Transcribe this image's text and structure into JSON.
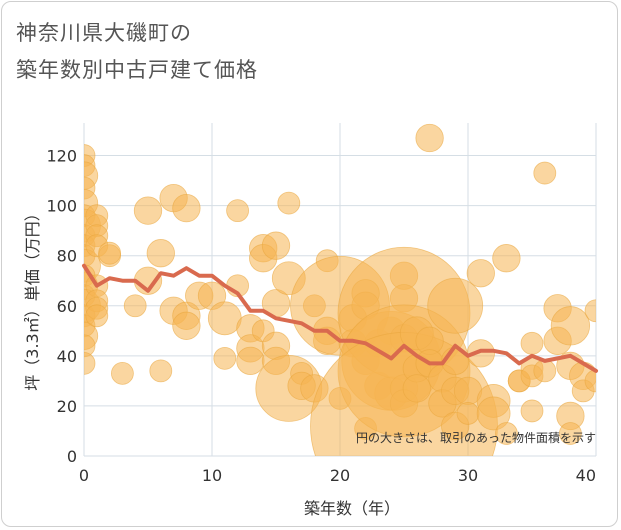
{
  "title_line1": "神奈川県大磯町の",
  "title_line2": "築年数別中古戸建て価格",
  "chart_data": {
    "type": "scatter",
    "title": "神奈川県大磯町の築年数別中古戸建て価格",
    "xlabel": "築年数（年）",
    "ylabel": "坪（3.3㎡）単価（万円）",
    "xlim": [
      0,
      40
    ],
    "ylim": [
      0,
      133
    ],
    "xticks": [
      0,
      10,
      20,
      30,
      40
    ],
    "yticks": [
      0,
      20,
      40,
      60,
      80,
      100,
      120
    ],
    "grid": true,
    "note": "円の大きさは、取引のあった物件面積を示す",
    "colors": {
      "bubble": "#f5b552",
      "bubble_stroke": "#eaa63e",
      "line": "#d96a4e",
      "grid": "#d5dee5"
    },
    "scatter": [
      {
        "x": 0,
        "y": 120,
        "s": 2
      },
      {
        "x": 0,
        "y": 116,
        "s": 2
      },
      {
        "x": 0,
        "y": 112,
        "s": 2.5
      },
      {
        "x": 0,
        "y": 107,
        "s": 2
      },
      {
        "x": 0,
        "y": 101,
        "s": 2.5
      },
      {
        "x": 0,
        "y": 96,
        "s": 2
      },
      {
        "x": 0,
        "y": 92,
        "s": 3
      },
      {
        "x": 0,
        "y": 88,
        "s": 2
      },
      {
        "x": 0,
        "y": 84,
        "s": 2
      },
      {
        "x": 0,
        "y": 80,
        "s": 2
      },
      {
        "x": 0,
        "y": 76,
        "s": 3
      },
      {
        "x": 0,
        "y": 72,
        "s": 2
      },
      {
        "x": 0,
        "y": 68,
        "s": 2.5
      },
      {
        "x": 0,
        "y": 64,
        "s": 2
      },
      {
        "x": 0,
        "y": 60,
        "s": 3
      },
      {
        "x": 0,
        "y": 56,
        "s": 2
      },
      {
        "x": 0,
        "y": 52,
        "s": 2
      },
      {
        "x": 0,
        "y": 48,
        "s": 2.5
      },
      {
        "x": 0,
        "y": 44,
        "s": 2
      },
      {
        "x": 0,
        "y": 37,
        "s": 2
      },
      {
        "x": 1,
        "y": 96,
        "s": 2
      },
      {
        "x": 1,
        "y": 92,
        "s": 2
      },
      {
        "x": 1,
        "y": 88,
        "s": 2
      },
      {
        "x": 1,
        "y": 84,
        "s": 2
      },
      {
        "x": 1,
        "y": 68,
        "s": 2
      },
      {
        "x": 1,
        "y": 62,
        "s": 2
      },
      {
        "x": 1,
        "y": 59,
        "s": 2
      },
      {
        "x": 1,
        "y": 56,
        "s": 2
      },
      {
        "x": 2,
        "y": 80,
        "s": 2
      },
      {
        "x": 2,
        "y": 81,
        "s": 2
      },
      {
        "x": 3,
        "y": 33,
        "s": 2
      },
      {
        "x": 4,
        "y": 60,
        "s": 2
      },
      {
        "x": 5,
        "y": 98,
        "s": 2.5
      },
      {
        "x": 5,
        "y": 70,
        "s": 2.5
      },
      {
        "x": 6,
        "y": 81,
        "s": 2.5
      },
      {
        "x": 6,
        "y": 34,
        "s": 2
      },
      {
        "x": 7,
        "y": 103,
        "s": 2.5
      },
      {
        "x": 7,
        "y": 58,
        "s": 2.5
      },
      {
        "x": 8,
        "y": 99,
        "s": 2.5
      },
      {
        "x": 8,
        "y": 56,
        "s": 2.5
      },
      {
        "x": 8,
        "y": 52,
        "s": 2.5
      },
      {
        "x": 9,
        "y": 64,
        "s": 2.5
      },
      {
        "x": 10,
        "y": 64,
        "s": 2.5
      },
      {
        "x": 11,
        "y": 55,
        "s": 3
      },
      {
        "x": 11,
        "y": 39,
        "s": 2
      },
      {
        "x": 12,
        "y": 98,
        "s": 2
      },
      {
        "x": 12,
        "y": 68,
        "s": 2
      },
      {
        "x": 13,
        "y": 51,
        "s": 2.5
      },
      {
        "x": 13,
        "y": 43,
        "s": 2.5
      },
      {
        "x": 13,
        "y": 38,
        "s": 2.5
      },
      {
        "x": 14,
        "y": 83,
        "s": 2.5
      },
      {
        "x": 14,
        "y": 79,
        "s": 2.5
      },
      {
        "x": 14,
        "y": 50,
        "s": 2
      },
      {
        "x": 15,
        "y": 84,
        "s": 2.5
      },
      {
        "x": 15,
        "y": 61,
        "s": 2.5
      },
      {
        "x": 15,
        "y": 44,
        "s": 2.5
      },
      {
        "x": 15,
        "y": 38,
        "s": 2.5
      },
      {
        "x": 16,
        "y": 101,
        "s": 2
      },
      {
        "x": 16,
        "y": 71,
        "s": 3
      },
      {
        "x": 16,
        "y": 27,
        "s": 6
      },
      {
        "x": 17,
        "y": 33,
        "s": 2
      },
      {
        "x": 17,
        "y": 28,
        "s": 2.5
      },
      {
        "x": 18,
        "y": 60,
        "s": 2
      },
      {
        "x": 18,
        "y": 27,
        "s": 2.5
      },
      {
        "x": 19,
        "y": 78,
        "s": 2
      },
      {
        "x": 19,
        "y": 50,
        "s": 2.5
      },
      {
        "x": 19,
        "y": 46,
        "s": 2.5
      },
      {
        "x": 20,
        "y": 60,
        "s": 9
      },
      {
        "x": 20,
        "y": 23,
        "s": 2
      },
      {
        "x": 21,
        "y": 55,
        "s": 2.5
      },
      {
        "x": 21,
        "y": 45,
        "s": 2.5
      },
      {
        "x": 22,
        "y": 65,
        "s": 2.5
      },
      {
        "x": 22,
        "y": 60,
        "s": 2.5
      },
      {
        "x": 22,
        "y": 38,
        "s": 2.5
      },
      {
        "x": 22,
        "y": 11,
        "s": 2
      },
      {
        "x": 23,
        "y": 45,
        "s": 2.5
      },
      {
        "x": 23,
        "y": 28,
        "s": 2.5
      },
      {
        "x": 24,
        "y": 50,
        "s": 2.5
      },
      {
        "x": 24,
        "y": 38,
        "s": 9
      },
      {
        "x": 24,
        "y": 25,
        "s": 3
      },
      {
        "x": 25,
        "y": 72,
        "s": 2.5
      },
      {
        "x": 25,
        "y": 63,
        "s": 2.5
      },
      {
        "x": 25,
        "y": 57,
        "s": 12
      },
      {
        "x": 25,
        "y": 47,
        "s": 2.5
      },
      {
        "x": 25,
        "y": 34,
        "s": 12
      },
      {
        "x": 25,
        "y": 27,
        "s": 2.5
      },
      {
        "x": 25,
        "y": 21,
        "s": 2.5
      },
      {
        "x": 25,
        "y": 12,
        "s": 17
      },
      {
        "x": 26,
        "y": 49,
        "s": 3
      },
      {
        "x": 26,
        "y": 35,
        "s": 2.5
      },
      {
        "x": 26,
        "y": 27,
        "s": 2.5
      },
      {
        "x": 27,
        "y": 127,
        "s": 2.5
      },
      {
        "x": 27,
        "y": 46,
        "s": 2.5
      },
      {
        "x": 27,
        "y": 37,
        "s": 2.5
      },
      {
        "x": 28,
        "y": 31,
        "s": 2.5
      },
      {
        "x": 28,
        "y": 21,
        "s": 2.5
      },
      {
        "x": 29,
        "y": 60,
        "s": 5
      },
      {
        "x": 29,
        "y": 38,
        "s": 2.5
      },
      {
        "x": 29,
        "y": 26,
        "s": 2.5
      },
      {
        "x": 29,
        "y": 12,
        "s": 2.5
      },
      {
        "x": 30,
        "y": 26,
        "s": 2.5
      },
      {
        "x": 30,
        "y": 17,
        "s": 2
      },
      {
        "x": 31,
        "y": 73,
        "s": 2.5
      },
      {
        "x": 31,
        "y": 41,
        "s": 2.5
      },
      {
        "x": 32,
        "y": 22,
        "s": 3
      },
      {
        "x": 32,
        "y": 17,
        "s": 3
      },
      {
        "x": 33,
        "y": 79,
        "s": 2.5
      },
      {
        "x": 33,
        "y": 9,
        "s": 2
      },
      {
        "x": 34,
        "y": 30,
        "s": 2
      },
      {
        "x": 34,
        "y": 30,
        "s": 2
      },
      {
        "x": 35,
        "y": 45,
        "s": 2
      },
      {
        "x": 35,
        "y": 35,
        "s": 2
      },
      {
        "x": 35,
        "y": 32,
        "s": 2
      },
      {
        "x": 35,
        "y": 18,
        "s": 2
      },
      {
        "x": 36,
        "y": 113,
        "s": 2
      },
      {
        "x": 36,
        "y": 34,
        "s": 2
      },
      {
        "x": 37,
        "y": 59,
        "s": 2.5
      },
      {
        "x": 37,
        "y": 46,
        "s": 2.5
      },
      {
        "x": 38,
        "y": 52,
        "s": 3.5
      },
      {
        "x": 38,
        "y": 36,
        "s": 2.5
      },
      {
        "x": 38,
        "y": 16,
        "s": 2.5
      },
      {
        "x": 38,
        "y": 9,
        "s": 2
      },
      {
        "x": 39,
        "y": 32,
        "s": 2.5
      },
      {
        "x": 39,
        "y": 26,
        "s": 2
      },
      {
        "x": 40,
        "y": 58,
        "s": 2
      },
      {
        "x": 40,
        "y": 30,
        "s": 2
      }
    ],
    "line": {
      "x": [
        0,
        1,
        2,
        3,
        4,
        5,
        6,
        7,
        8,
        9,
        10,
        11,
        12,
        13,
        14,
        15,
        16,
        17,
        18,
        19,
        20,
        21,
        22,
        23,
        24,
        25,
        26,
        27,
        28,
        29,
        30,
        31,
        32,
        33,
        34,
        35,
        36,
        37,
        38,
        39,
        40
      ],
      "y": [
        76,
        68,
        71,
        70,
        70,
        66,
        73,
        72,
        75,
        72,
        72,
        68,
        65,
        58,
        58,
        55,
        54,
        53,
        50,
        50,
        46,
        46,
        45,
        42,
        39,
        44,
        40,
        37,
        37,
        44,
        40,
        42,
        42,
        41,
        37,
        40,
        38,
        39,
        40,
        37,
        34
      ]
    }
  }
}
